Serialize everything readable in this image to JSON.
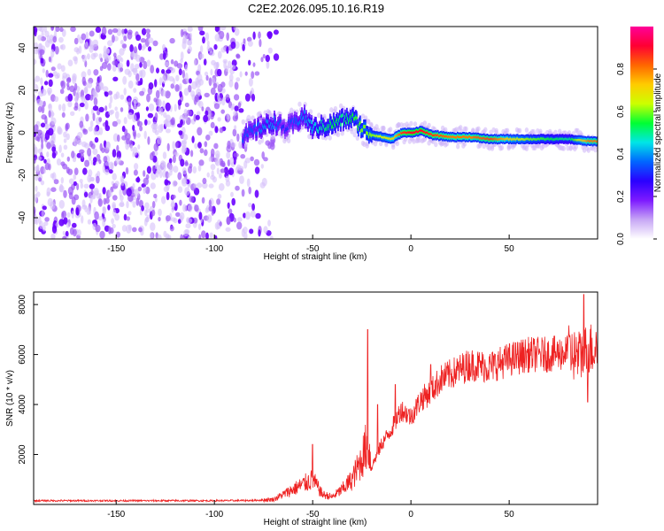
{
  "figure_title": "C2E2.2026.095.10.16.R19",
  "chart_data": [
    {
      "type": "heatmap",
      "title": "",
      "xlabel": "Height of straight line (km)",
      "ylabel": "Frequency (Hz)",
      "xlim": [
        -192,
        95
      ],
      "ylim": [
        -50,
        50
      ],
      "xticks": [
        -150,
        -100,
        -50,
        0,
        50
      ],
      "yticks": [
        -40,
        -20,
        0,
        20,
        40
      ],
      "colorbar": {
        "label": "Normalized spectral amplitude",
        "range": [
          0,
          1
        ],
        "ticks": [
          0.0,
          0.2,
          0.4,
          0.6,
          0.8
        ],
        "colormap": [
          "#ffffff",
          "#c7a6f5",
          "#7d1aff",
          "#2a00ff",
          "#0066ff",
          "#00e6e6",
          "#00ff33",
          "#ccff00",
          "#ffcc00",
          "#ff6600",
          "#ff0033",
          "#ff0099"
        ]
      },
      "ridge": {
        "x": [
          -86,
          -80,
          -75,
          -70,
          -65,
          -60,
          -55,
          -50,
          -45,
          -40,
          -35,
          -30,
          -25,
          -20,
          -15,
          -10,
          -5,
          0,
          5,
          10,
          20,
          30,
          40,
          50,
          60,
          70,
          80,
          90
        ],
        "freq": [
          -2,
          1,
          3,
          5,
          2,
          4,
          8,
          2,
          3,
          4,
          6,
          7,
          2,
          -1,
          -2,
          -3,
          0,
          0,
          1,
          -1,
          -2,
          -2,
          -3,
          -3,
          -3,
          -3,
          -3,
          -4
        ],
        "amplitude": [
          0.35,
          0.35,
          0.4,
          0.4,
          0.3,
          0.35,
          0.4,
          0.45,
          0.5,
          0.55,
          0.5,
          0.55,
          0.6,
          0.6,
          0.65,
          0.7,
          0.85,
          0.9,
          0.9,
          0.85,
          0.8,
          0.8,
          0.85,
          0.7,
          0.6,
          0.55,
          0.5,
          0.8
        ]
      },
      "noise_region_x": [
        -192,
        -70
      ]
    },
    {
      "type": "line",
      "title": "",
      "xlabel": "Height of straight line (km)",
      "ylabel": "SNR (10 * v/v)",
      "xlim": [
        -192,
        95
      ],
      "ylim": [
        0,
        8500
      ],
      "xticks": [
        -150,
        -100,
        -50,
        0,
        50
      ],
      "yticks": [
        2000,
        4000,
        6000,
        8000
      ],
      "series": [
        {
          "name": "SNR",
          "color": "#ee2222",
          "x": [
            -192,
            -150,
            -100,
            -80,
            -70,
            -60,
            -55,
            -50,
            -45,
            -40,
            -35,
            -30,
            -25,
            -22,
            -20,
            -15,
            -10,
            -5,
            0,
            5,
            10,
            15,
            20,
            25,
            30,
            40,
            50,
            60,
            70,
            80,
            85,
            90,
            95
          ],
          "y": [
            150,
            150,
            150,
            160,
            200,
            600,
            800,
            1000,
            400,
            300,
            600,
            1000,
            1800,
            2500,
            1500,
            2400,
            3000,
            3800,
            3500,
            4200,
            4500,
            5000,
            5200,
            5400,
            5600,
            5500,
            5800,
            6000,
            6000,
            6100,
            5900,
            6200,
            6300
          ]
        }
      ],
      "spikes": [
        {
          "x": -50,
          "y": 2400
        },
        {
          "x": -22,
          "y": 7000
        },
        {
          "x": -17,
          "y": 4000
        },
        {
          "x": -8,
          "y": 4800
        },
        {
          "x": 10,
          "y": 5600
        },
        {
          "x": 88,
          "y": 8400
        },
        {
          "x": 90,
          "y": 4100
        }
      ]
    }
  ]
}
